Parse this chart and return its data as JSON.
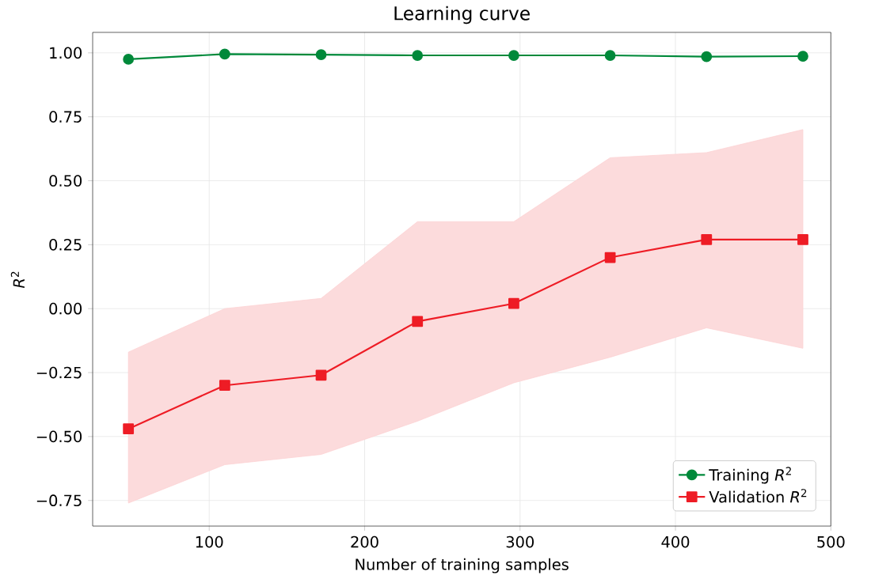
{
  "chart_data": {
    "type": "line",
    "title": "Learning curve",
    "xlabel": "Number of training samples",
    "ylabel": "*R*$^{2}$",
    "x": [
      48,
      110,
      172,
      234,
      296,
      358,
      420,
      482
    ],
    "series": [
      {
        "name": "Training *R*$^{2}$",
        "color": "#00893a",
        "marker": "circle",
        "values": [
          0.975,
          0.995,
          0.993,
          0.99,
          0.99,
          0.99,
          0.985,
          0.987
        ]
      },
      {
        "name": "Validation *R*$^{2}$",
        "color": "#ee1c25",
        "marker": "square",
        "values": [
          -0.47,
          -0.3,
          -0.26,
          -0.05,
          0.02,
          0.2,
          0.27,
          0.27
        ],
        "lower": [
          -0.76,
          -0.61,
          -0.57,
          -0.44,
          -0.29,
          -0.19,
          -0.075,
          -0.155
        ],
        "upper": [
          -0.17,
          0.0,
          0.04,
          0.34,
          0.34,
          0.59,
          0.61,
          0.7
        ]
      }
    ],
    "xlim": [
      25,
      500
    ],
    "ylim": [
      -0.85,
      1.08
    ],
    "xticks": [
      100,
      200,
      300,
      400,
      500
    ],
    "yticks": [
      {
        "value": -0.75,
        "label": "−0.75"
      },
      {
        "value": -0.5,
        "label": "−0.50"
      },
      {
        "value": -0.25,
        "label": "−0.25"
      },
      {
        "value": 0,
        "label": "0.00"
      },
      {
        "value": 0.25,
        "label": "0.25"
      },
      {
        "value": 0.5,
        "label": "0.50"
      },
      {
        "value": 0.75,
        "label": "0.75"
      },
      {
        "value": 1,
        "label": "1.00"
      }
    ],
    "grid": true,
    "legend": "bottom right"
  }
}
